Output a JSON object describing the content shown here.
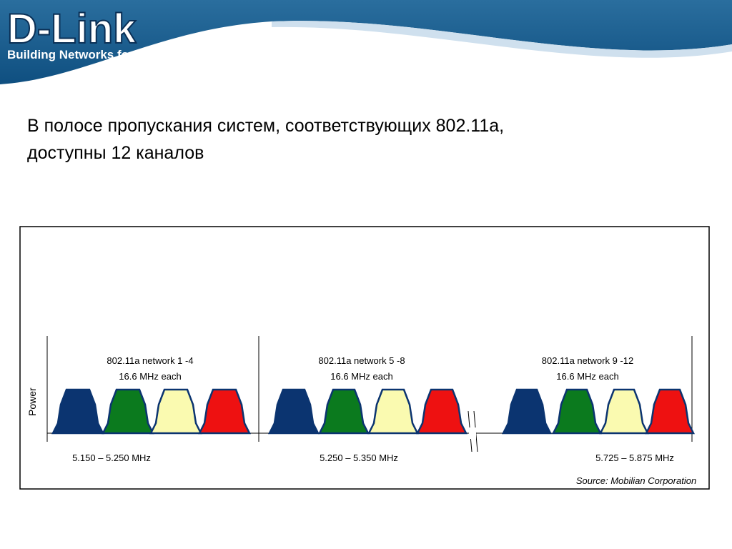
{
  "header": {
    "logo": "D-Link",
    "slogan": "Building Networks for People"
  },
  "title": {
    "lines": [
      "В полосе пропускания систем, соответствующих 802.11a,",
      "доступны 12 каналов"
    ]
  },
  "diagram": {
    "y_axis_label": "Power",
    "groups": [
      {
        "label": "802.11a network 1 -4",
        "sublabel": "16.6 MHz each",
        "range": "5.150 – 5.250 MHz"
      },
      {
        "label": "802.11a network 5 -8",
        "sublabel": "16.6 MHz each",
        "range": "5.250 – 5.350 MHz"
      },
      {
        "label": "802.11a network 9 -12",
        "sublabel": "16.6 MHz each",
        "range": "5.725 – 5.875 MHz"
      }
    ],
    "source": "Source:  Mobilian Corporation"
  }
}
